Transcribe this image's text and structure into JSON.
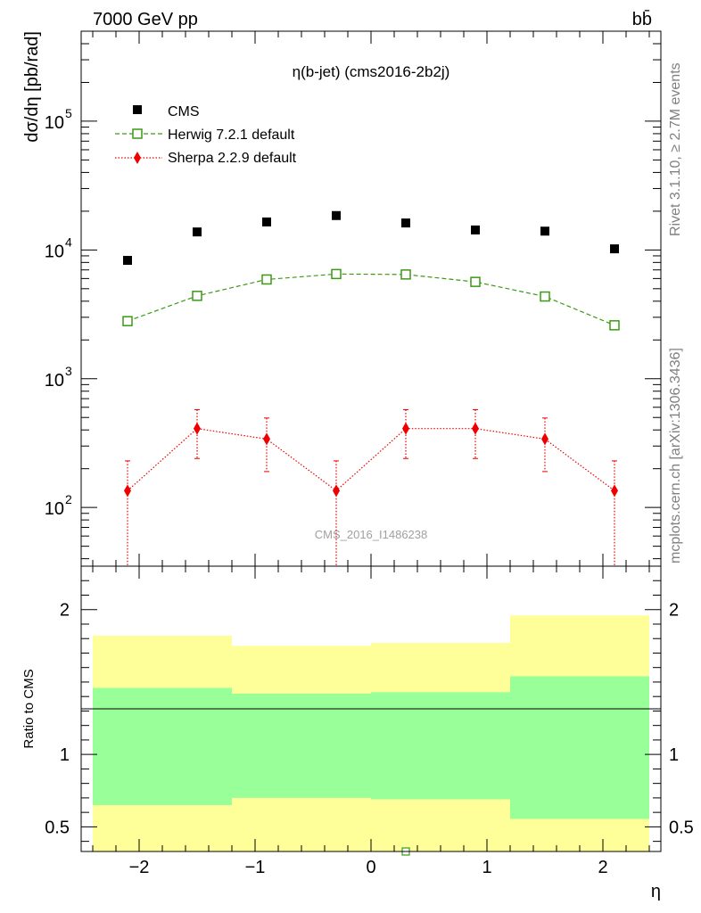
{
  "header": {
    "left": "7000 GeV pp",
    "right": "bb̄"
  },
  "side": {
    "rivet": "Rivet 3.1.10, ≥ 2.7M events",
    "mcplots": "mcplots.cern.ch [arXiv:1306.3436]"
  },
  "chart_data": {
    "type": "scatter",
    "title": "η(b-jet) (cms2016-2b2j)",
    "watermark": "CMS_2016_I1486238",
    "ylabel": "dσ/dη [pb/rad]",
    "xlabel": "η",
    "ratio_ylabel": "Ratio to CMS",
    "xlim": [
      -2.5,
      2.5
    ],
    "ylim": [
      35,
      500000
    ],
    "yscale": "log",
    "ratio_ylim": [
      0.33,
      2.3
    ],
    "x_ticks": [
      -2,
      -1,
      0,
      1,
      2
    ],
    "x_tick_labels": [
      "−2",
      "−1",
      "0",
      "1",
      "2"
    ],
    "y_ticks": [
      100,
      1000,
      10000,
      100000
    ],
    "y_tick_labels": [
      "10",
      "10",
      "10",
      "10"
    ],
    "y_tick_exponents": [
      "2",
      "3",
      "4",
      "5"
    ],
    "ratio_ticks": [
      0.5,
      1,
      2
    ],
    "ratio_tick_labels": [
      "0.5",
      "1",
      "2"
    ],
    "legend_position": "top-left",
    "bins": [
      -2.4,
      -1.2,
      -0.6,
      0.0,
      0.6,
      1.2,
      2.4
    ],
    "band_outer_hi": [
      1.82,
      1.75,
      1.75,
      1.77,
      1.77,
      1.96
    ],
    "band_outer_lo": [
      0.33,
      0.33,
      0.33,
      0.33,
      0.33,
      0.33
    ],
    "band_inner_hi": [
      1.46,
      1.42,
      1.42,
      1.43,
      1.43,
      1.54
    ],
    "band_inner_lo": [
      0.65,
      0.7,
      0.7,
      0.69,
      0.69,
      0.555
    ],
    "series": [
      {
        "name": "CMS",
        "color": "#000000",
        "marker": "square-filled",
        "x": [
          -2.1,
          -1.5,
          -0.9,
          -0.3,
          0.3,
          0.9,
          1.5,
          2.1
        ],
        "y": [
          8300,
          13800,
          16500,
          18500,
          16200,
          14300,
          14000,
          10200
        ]
      },
      {
        "name": "Herwig 7.2.1 default",
        "color": "#3a9a15",
        "marker": "square-open",
        "line": "dashed",
        "x": [
          -2.1,
          -1.5,
          -0.9,
          -0.3,
          0.3,
          0.9,
          1.5,
          2.1
        ],
        "y": [
          2800,
          4400,
          5900,
          6500,
          6450,
          5650,
          4350,
          2600
        ],
        "ratio_offscale_x": [
          0.3
        ]
      },
      {
        "name": "Sherpa 2.2.9 default",
        "color": "#ee0000",
        "marker": "diamond-filled",
        "line": "dotted",
        "x": [
          -2.1,
          -1.5,
          -0.9,
          -0.3,
          0.3,
          0.9,
          1.5,
          2.1
        ],
        "y": [
          135,
          410,
          340,
          135,
          410,
          410,
          340,
          135
        ],
        "err_lo": [
          100,
          170,
          150,
          100,
          170,
          170,
          150,
          100
        ],
        "err_hi": [
          95,
          165,
          155,
          95,
          165,
          165,
          155,
          95
        ]
      }
    ]
  }
}
